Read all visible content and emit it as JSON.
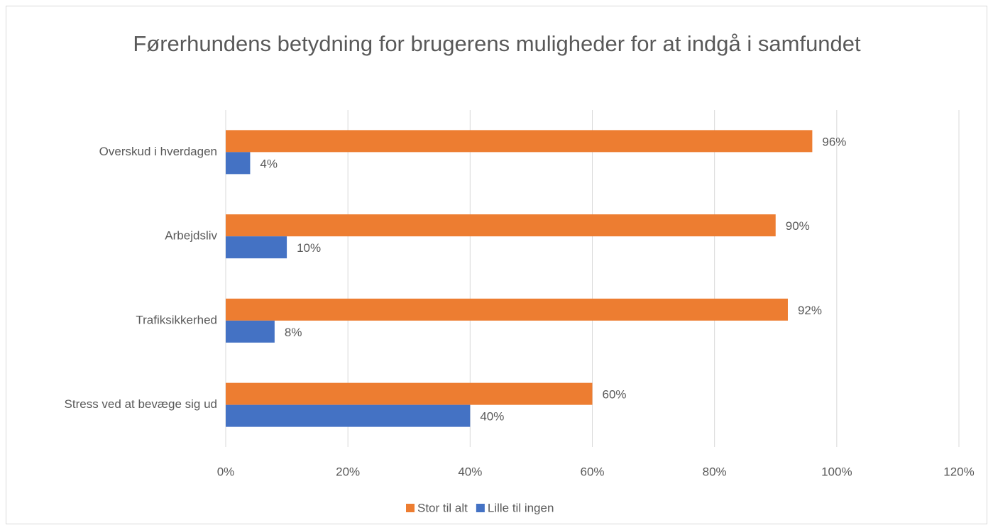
{
  "chart_data": {
    "type": "hbar",
    "title": "Førerhundens betydning for brugerens muligheder for at indgå i samfundet",
    "categories": [
      "Overskud i hverdagen",
      "Arbejdsliv",
      "Trafiksikkerhed",
      "Stress ved at bevæge sig ud"
    ],
    "series": [
      {
        "name": "Stor til alt",
        "color": "#ed7d31",
        "values": [
          96,
          90,
          92,
          60
        ],
        "value_labels": [
          "96%",
          "90%",
          "92%",
          "60%"
        ]
      },
      {
        "name": "Lille til ingen",
        "color": "#4472c4",
        "values": [
          4,
          10,
          8,
          40
        ],
        "value_labels": [
          "4%",
          "10%",
          "8%",
          "40%"
        ]
      }
    ],
    "xlim": [
      0,
      120
    ],
    "xticks": [
      {
        "value": 0,
        "label": "0%"
      },
      {
        "value": 20,
        "label": "20%"
      },
      {
        "value": 40,
        "label": "40%"
      },
      {
        "value": 60,
        "label": "60%"
      },
      {
        "value": 80,
        "label": "80%"
      },
      {
        "value": 100,
        "label": "100%"
      },
      {
        "value": 120,
        "label": "120%"
      }
    ],
    "grid": true,
    "legend": "bottom"
  }
}
